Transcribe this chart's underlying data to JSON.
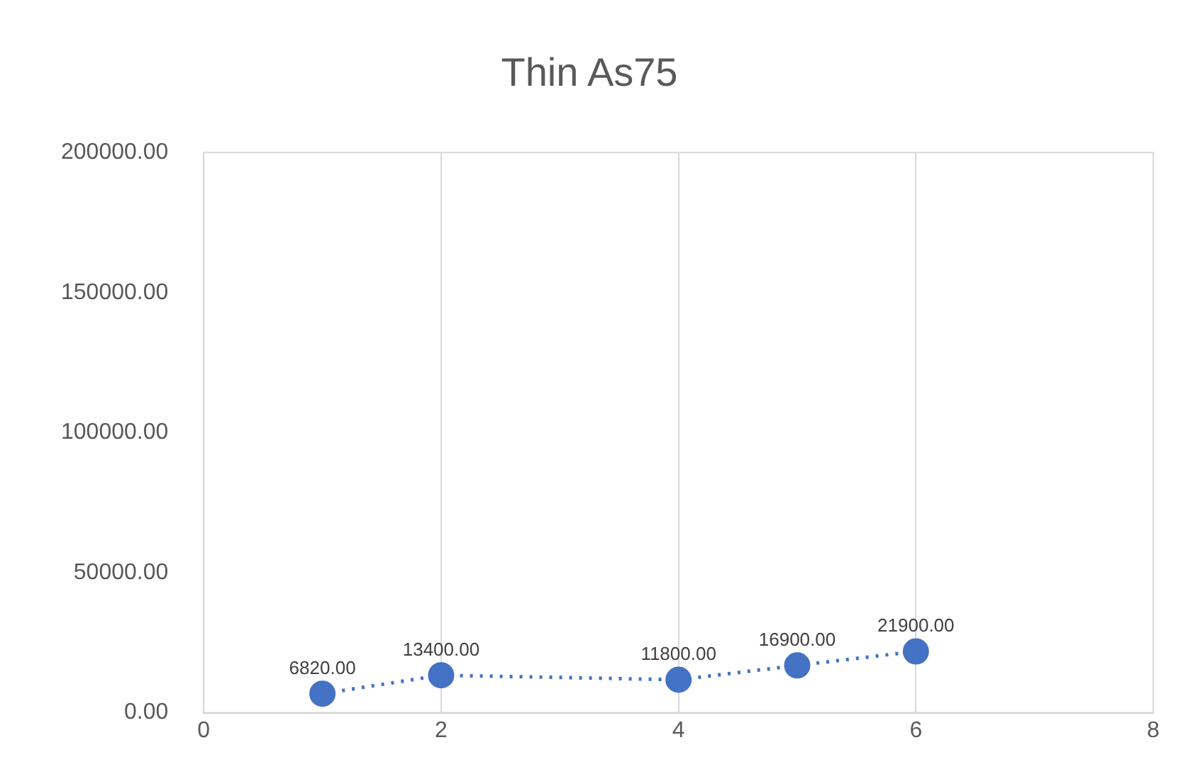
{
  "chart_data": {
    "type": "scatter",
    "title": "Thin As75",
    "x": [
      1,
      2,
      4,
      5,
      6
    ],
    "series": [
      {
        "color": "#4472c4",
        "values": [
          6820,
          13400,
          11800,
          16900,
          21900
        ],
        "value_labels": [
          "6820.00",
          "13400.00",
          "11800.00",
          "16900.00",
          "21900.00"
        ]
      }
    ],
    "xlim": [
      0,
      8
    ],
    "xticks": [
      0,
      2,
      4,
      6,
      8
    ],
    "ylim": [
      0,
      200000
    ],
    "yticks": [
      {
        "value": 0,
        "label": "0.00"
      },
      {
        "value": 50000,
        "label": "50000.00"
      },
      {
        "value": 100000,
        "label": "100000.00"
      },
      {
        "value": 150000,
        "label": "150000.00"
      },
      {
        "value": 200000,
        "label": "200000.00"
      }
    ],
    "grid": "x",
    "marker": "circle",
    "line_style": "dotted",
    "legend": false
  }
}
